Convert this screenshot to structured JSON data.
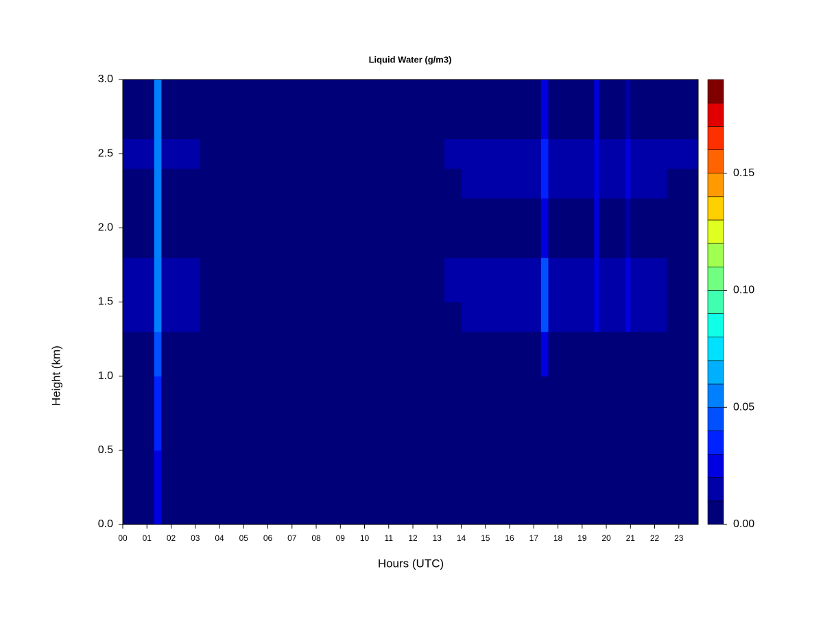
{
  "chart_data": {
    "type": "heatmap",
    "title": "Liquid Water (g/m3)",
    "x_label": "Hours (UTC)",
    "y_label": "Height (km)",
    "x_bins": [
      0,
      1.3,
      1.6,
      3.2,
      13.3,
      14,
      17.3,
      17.6,
      19.5,
      19.7,
      20.8,
      21,
      22.5,
      23.8
    ],
    "y_bins": [
      0,
      0.5,
      1.0,
      1.3,
      1.5,
      1.8,
      2.2,
      2.4,
      2.6,
      3.0
    ],
    "values": [
      [
        0.005,
        0.025,
        0.005,
        0.005,
        0.005,
        0.005,
        0.005,
        0.005,
        0.005,
        0.005,
        0.005,
        0.005,
        0.005
      ],
      [
        0.005,
        0.035,
        0.005,
        0.005,
        0.005,
        0.005,
        0.005,
        0.005,
        0.005,
        0.005,
        0.005,
        0.005,
        0.005
      ],
      [
        0.008,
        0.045,
        0.008,
        0.005,
        0.005,
        0.005,
        0.02,
        0.005,
        0.005,
        0.005,
        0.005,
        0.005,
        0.005
      ],
      [
        0.012,
        0.05,
        0.012,
        0.005,
        0.008,
        0.013,
        0.04,
        0.013,
        0.02,
        0.013,
        0.02,
        0.012,
        0.005
      ],
      [
        0.012,
        0.05,
        0.012,
        0.005,
        0.015,
        0.016,
        0.045,
        0.015,
        0.025,
        0.014,
        0.025,
        0.012,
        0.005
      ],
      [
        0.005,
        0.05,
        0.005,
        0.005,
        0.005,
        0.005,
        0.02,
        0.005,
        0.02,
        0.005,
        0.015,
        0.005,
        0.005
      ],
      [
        0.005,
        0.055,
        0.005,
        0.005,
        0.008,
        0.016,
        0.03,
        0.016,
        0.025,
        0.016,
        0.02,
        0.015,
        0.008
      ],
      [
        0.012,
        0.055,
        0.012,
        0.005,
        0.013,
        0.016,
        0.035,
        0.016,
        0.025,
        0.016,
        0.02,
        0.016,
        0.013
      ],
      [
        0.005,
        0.055,
        0.005,
        0.005,
        0.005,
        0.005,
        0.025,
        0.005,
        0.02,
        0.005,
        0.012,
        0.005,
        0.005
      ]
    ],
    "levels": [
      0,
      0.01,
      0.02,
      0.03,
      0.04,
      0.05,
      0.06,
      0.07,
      0.08,
      0.09,
      0.1,
      0.11,
      0.12,
      0.13,
      0.14,
      0.15,
      0.16,
      0.17,
      0.18,
      0.19
    ],
    "colors": [
      "#000078",
      "#0000A8",
      "#0000E0",
      "#0022FF",
      "#0050FF",
      "#0080FF",
      "#00B0FF",
      "#00E0FF",
      "#10FFE8",
      "#40FFB0",
      "#70FF80",
      "#A0FF50",
      "#E0FF20",
      "#FFD000",
      "#FF9A00",
      "#FF6400",
      "#FF3000",
      "#E00000",
      "#800000"
    ],
    "xlim": [
      0,
      23.8
    ],
    "ylim": [
      0,
      3.0
    ],
    "xticks": [
      {
        "value": 0,
        "label": "00"
      },
      {
        "value": 1,
        "label": "01"
      },
      {
        "value": 2,
        "label": "02"
      },
      {
        "value": 3,
        "label": "03"
      },
      {
        "value": 4,
        "label": "04"
      },
      {
        "value": 5,
        "label": "05"
      },
      {
        "value": 6,
        "label": "06"
      },
      {
        "value": 7,
        "label": "07"
      },
      {
        "value": 8,
        "label": "08"
      },
      {
        "value": 9,
        "label": "09"
      },
      10,
      11,
      12,
      13,
      14,
      15,
      16,
      17,
      18,
      19,
      20,
      21,
      22,
      23
    ],
    "yticks": [
      {
        "value": 0,
        "label": "0.0"
      },
      0.5,
      {
        "value": 1,
        "label": "1.0"
      },
      1.5,
      {
        "value": 2,
        "label": "2.0"
      },
      2.5,
      {
        "value": 3,
        "label": "3.0"
      }
    ],
    "colorbar_ticks": [
      {
        "value": 0,
        "label": "0.00"
      },
      0.05,
      {
        "value": 0.1,
        "label": "0.10"
      },
      0.15
    ]
  }
}
